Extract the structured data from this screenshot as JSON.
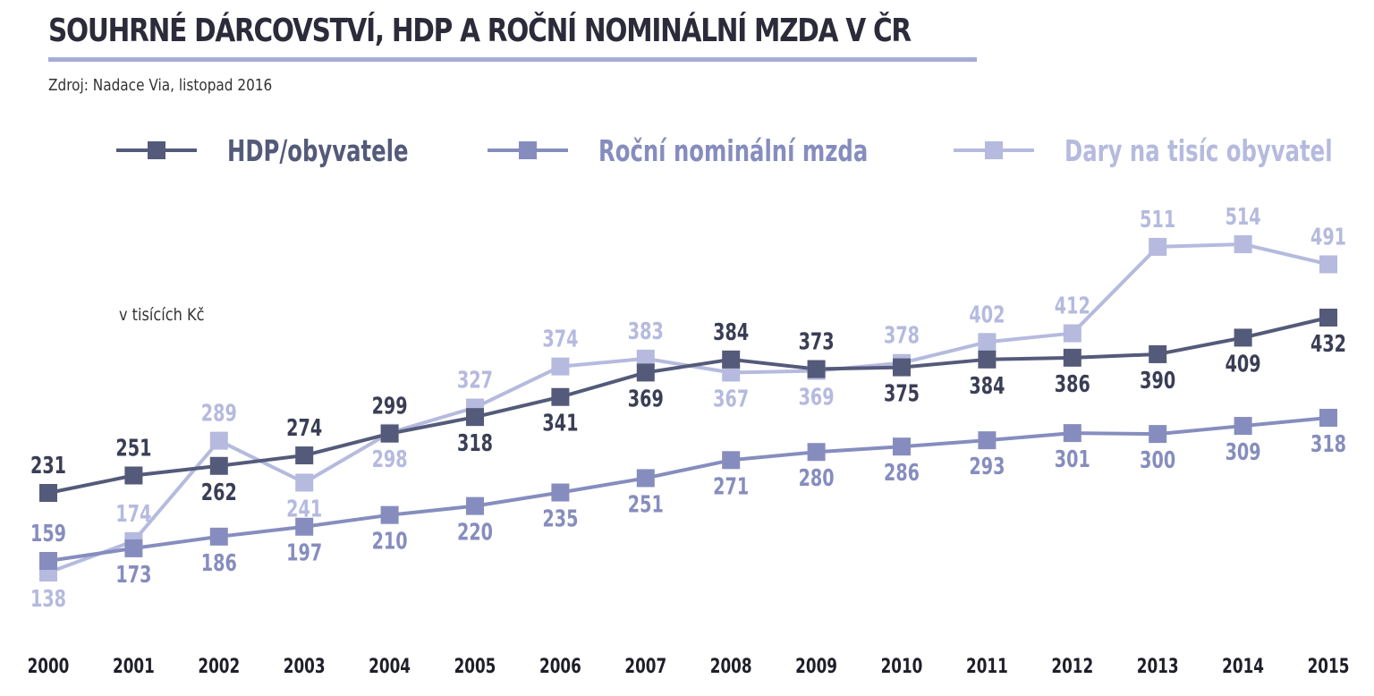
{
  "header": {
    "title": "SOUHRNÉ DÁRCOVSTVÍ, HDP A ROČNÍ NOMINÁLNÍ MZDA V ČR",
    "source": "Zdroj: Nadace Via, listopad 2016"
  },
  "chart_data": {
    "type": "line",
    "unit_label": "v tisících Kč",
    "x": [
      "2000",
      "2001",
      "2002",
      "2003",
      "2004",
      "2005",
      "2006",
      "2007",
      "2008",
      "2009",
      "2010",
      "2011",
      "2012",
      "2013",
      "2014",
      "2015"
    ],
    "legend_position": "top",
    "grid": false,
    "series": [
      {
        "name": "HDP/obyvatele",
        "color": "#545a79",
        "values": [
          231,
          251,
          262,
          274,
          299,
          318,
          341,
          369,
          384,
          373,
          375,
          384,
          386,
          390,
          409,
          432
        ]
      },
      {
        "name": "Roční nominální mzda",
        "color": "#868dbe",
        "values": [
          159,
          173,
          186,
          197,
          210,
          220,
          235,
          251,
          271,
          280,
          286,
          293,
          301,
          300,
          309,
          318
        ]
      },
      {
        "name": "Dary na tisíc obyvatel",
        "color": "#b5bade",
        "values": [
          138,
          174,
          289,
          241,
          298,
          327,
          374,
          383,
          367,
          369,
          378,
          402,
          412,
          511,
          514,
          491
        ]
      }
    ]
  }
}
